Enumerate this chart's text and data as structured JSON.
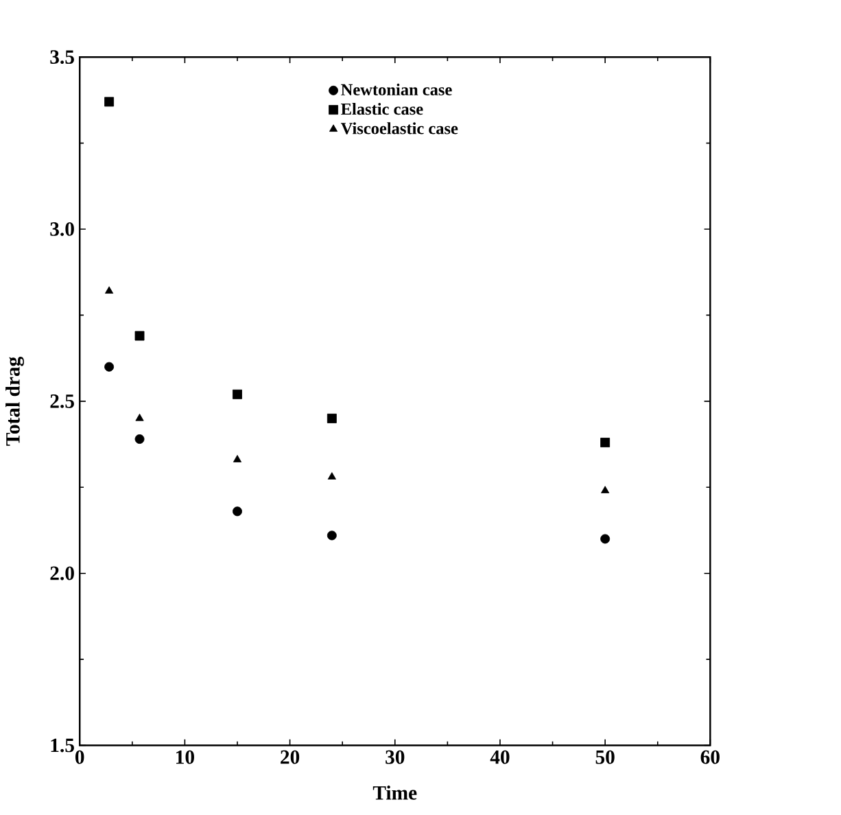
{
  "chart_data": {
    "type": "scatter",
    "xlabel": "Time",
    "ylabel": "Total drag",
    "xlim": [
      0,
      60
    ],
    "xticks": [
      0,
      10,
      20,
      30,
      40,
      50,
      60
    ],
    "ylim": [
      1.5,
      3.5
    ],
    "yticks": [
      {
        "value": 1.5,
        "label": "1.5"
      },
      {
        "value": 2.0,
        "label": "2.0"
      },
      {
        "value": 2.5,
        "label": "2.5"
      },
      {
        "value": 3.0,
        "label": "3.0"
      },
      {
        "value": 3.5,
        "label": "3.5"
      }
    ],
    "grid": false,
    "legend": "top",
    "x": [
      2.8,
      5.7,
      15,
      24,
      50
    ],
    "series": [
      {
        "name": "Newtonian case",
        "color": "#000000",
        "marker": "circle",
        "values": [
          2.6,
          2.39,
          2.18,
          2.11,
          2.1
        ]
      },
      {
        "name": "Elastic case",
        "color": "#000000",
        "marker": "square",
        "values": [
          3.37,
          2.69,
          2.52,
          2.45,
          2.38
        ]
      },
      {
        "name": "Viscoelastic case",
        "color": "#000000",
        "marker": "triangle",
        "values": [
          2.82,
          2.45,
          2.33,
          2.28,
          2.24
        ]
      }
    ]
  }
}
